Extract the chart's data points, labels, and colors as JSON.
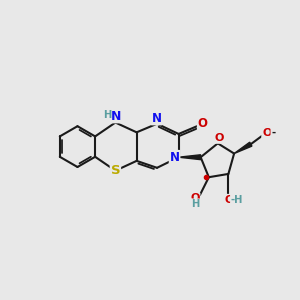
{
  "bg": "#e8e8e8",
  "bc": "#1a1a1a",
  "bw": 1.5,
  "dbo": 0.05,
  "colors": {
    "N": "#1010ee",
    "O": "#cc0000",
    "S": "#bbaa00",
    "Ht": "#5a9ea0",
    "C": "#1a1a1a"
  },
  "xlim": [
    0.1,
    5.8
  ],
  "ylim": [
    0.8,
    4.6
  ],
  "figsize": [
    3.0,
    3.0
  ],
  "dpi": 100
}
